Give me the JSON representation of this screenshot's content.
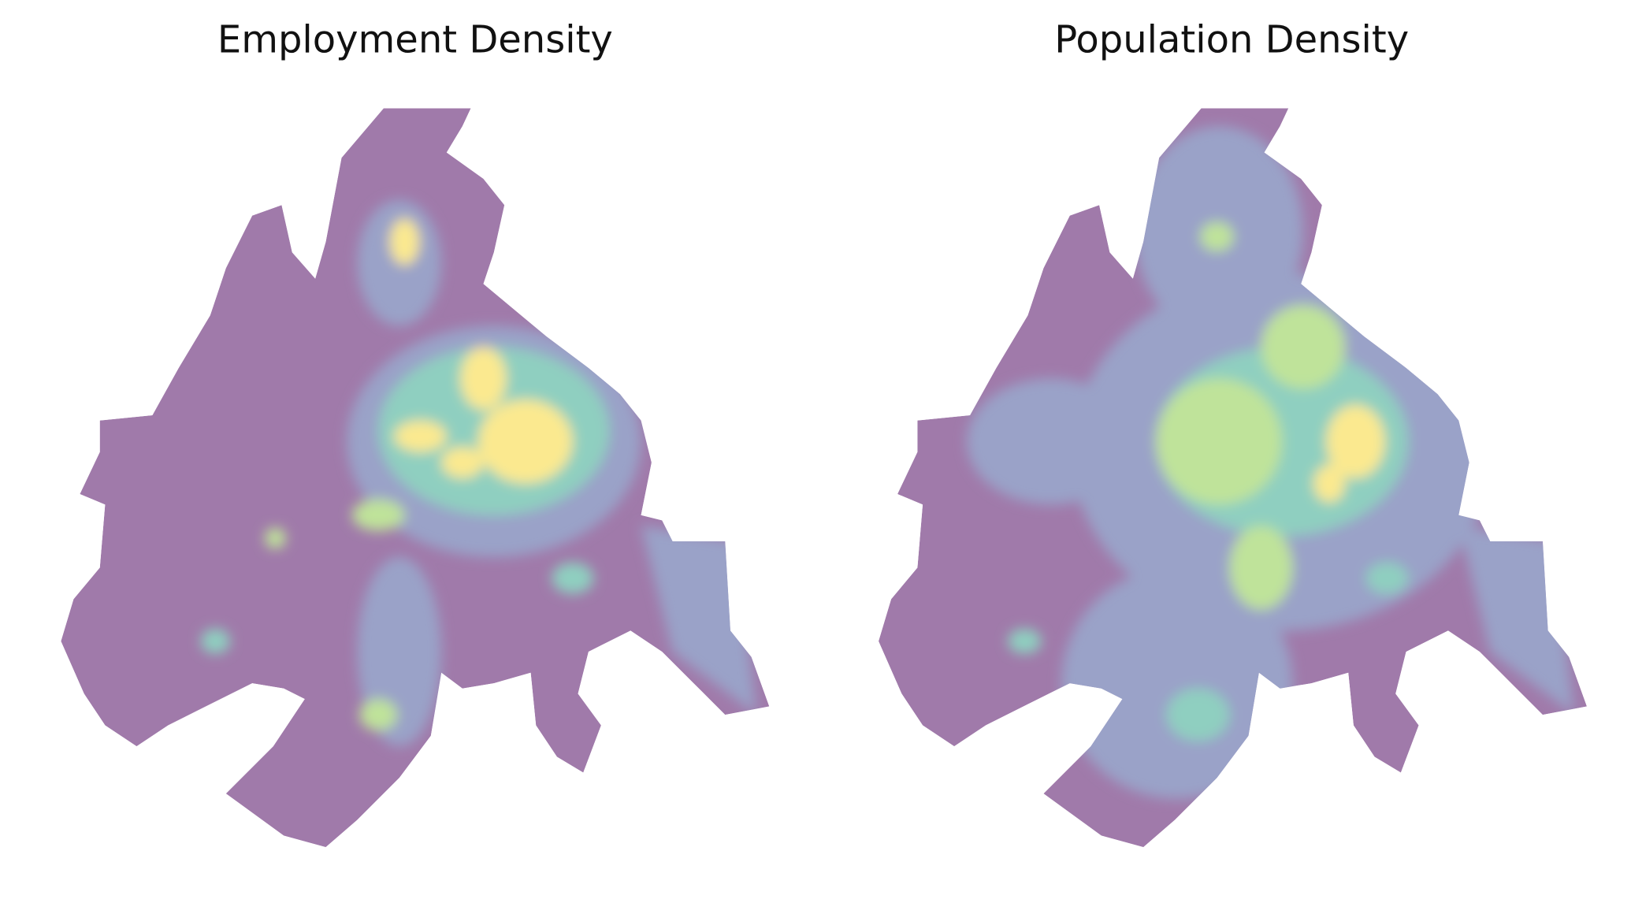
{
  "maps": [
    {
      "title": "Employment Density"
    },
    {
      "title": "Population Density"
    }
  ]
}
